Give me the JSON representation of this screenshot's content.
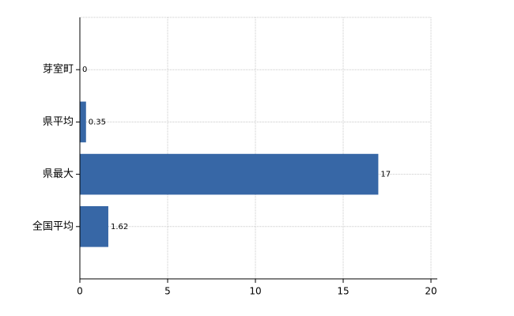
{
  "chart_data": {
    "type": "barh",
    "categories": [
      "芽室町",
      "県平均",
      "県最大",
      "全国平均"
    ],
    "values": [
      0,
      0.35,
      17,
      1.62
    ],
    "color": "#3767a6",
    "xlim": [
      0,
      20
    ],
    "xticks": [
      0,
      5,
      10,
      15,
      20
    ],
    "grid": true
  }
}
